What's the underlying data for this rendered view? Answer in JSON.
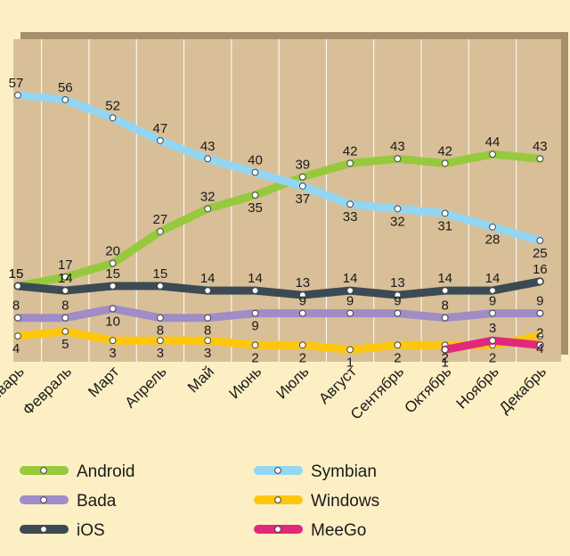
{
  "chart_data": {
    "type": "line",
    "title": "",
    "xlabel": "",
    "ylabel": "",
    "ylim": [
      0,
      60
    ],
    "grid": "vertical",
    "legend_position": "bottom",
    "categories": [
      "Январь",
      "Февраль",
      "Март",
      "Апрель",
      "Май",
      "Июнь",
      "Июль",
      "Август",
      "Сентябрь",
      "Октябрь",
      "Ноябрь",
      "Декабрь"
    ],
    "series": [
      {
        "name": "Android",
        "color": "#97c93d",
        "values": [
          15,
          17,
          20,
          27,
          32,
          35,
          39,
          42,
          43,
          42,
          44,
          43
        ]
      },
      {
        "name": "Symbian",
        "color": "#92d6f4",
        "values": [
          57,
          56,
          52,
          47,
          43,
          40,
          37,
          33,
          32,
          31,
          28,
          25
        ]
      },
      {
        "name": "Bada",
        "color": "#a08cc7",
        "values": [
          8,
          8,
          10,
          8,
          8,
          9,
          9,
          9,
          9,
          8,
          9,
          9
        ]
      },
      {
        "name": "Windows",
        "color": "#fec70c",
        "values": [
          4,
          5,
          3,
          3,
          3,
          2,
          2,
          1,
          2,
          2,
          2,
          4
        ]
      },
      {
        "name": "iOS",
        "color": "#3c4a54",
        "values": [
          15,
          14,
          15,
          15,
          14,
          14,
          13,
          14,
          13,
          14,
          14,
          16
        ]
      },
      {
        "name": "MeeGo",
        "color": "#e2287b",
        "values": [
          null,
          null,
          null,
          null,
          null,
          null,
          null,
          null,
          null,
          1,
          3,
          2
        ]
      }
    ]
  },
  "legend": [
    {
      "name": "Android",
      "color": "#97c93d"
    },
    {
      "name": "Symbian",
      "color": "#92d6f4"
    },
    {
      "name": "Bada",
      "color": "#a08cc7"
    },
    {
      "name": "Windows",
      "color": "#fec70c"
    },
    {
      "name": "iOS",
      "color": "#3c4a54"
    },
    {
      "name": "MeeGo",
      "color": "#e2287b"
    }
  ],
  "colors": {
    "page_background": "#fcefc4",
    "plot_background": "#d8bf98",
    "plot_shadow": "#a68f6c",
    "gridline": "#ffffff"
  }
}
